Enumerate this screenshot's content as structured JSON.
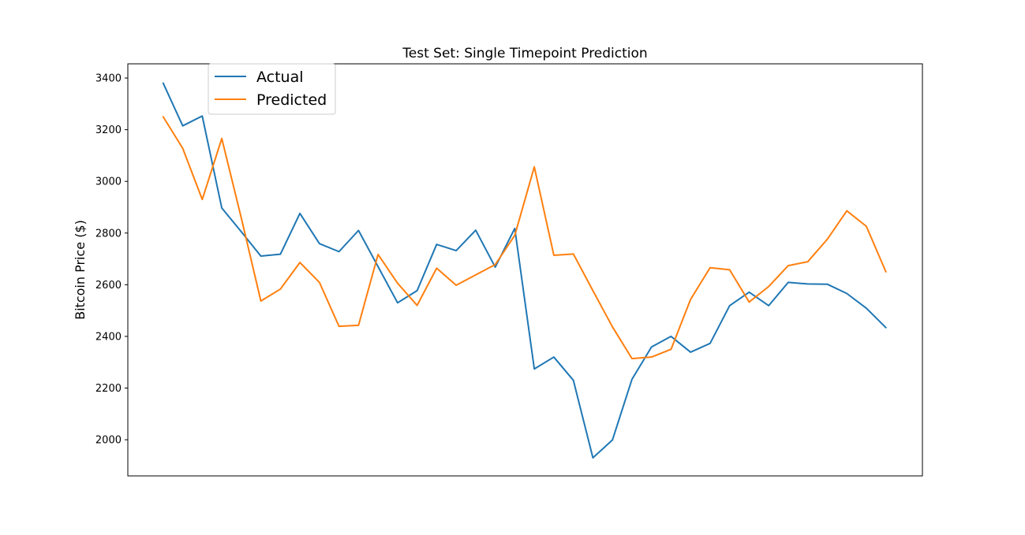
{
  "chart_data": {
    "type": "line",
    "title": "Test Set: Single Timepoint Prediction",
    "xlabel": "",
    "ylabel": "Bitcoin Price ($)",
    "x": [
      0,
      1,
      2,
      3,
      4,
      5,
      6,
      7,
      8,
      9,
      10,
      11,
      12,
      13,
      14,
      15,
      16,
      17,
      18,
      19,
      20,
      21,
      22,
      23,
      24,
      25,
      26,
      27,
      28,
      29,
      30,
      31,
      32,
      33,
      34,
      35,
      36,
      37
    ],
    "xlim": [
      -1.81,
      38.87
    ],
    "ylim": [
      1860,
      3455
    ],
    "yticks": [
      2000,
      2200,
      2400,
      2600,
      2800,
      3000,
      3200,
      3400
    ],
    "ytick_labels": [
      "2000",
      "2200",
      "2400",
      "2600",
      "2800",
      "3000",
      "3200",
      "3400"
    ],
    "x_ticks_visible": false,
    "grid": false,
    "legend_position": "upper-left",
    "series": [
      {
        "name": "Actual",
        "color": "#1f77b4",
        "values": [
          3380,
          3215,
          3253,
          2897,
          2805,
          2711,
          2718,
          2876,
          2759,
          2728,
          2810,
          2670,
          2530,
          2577,
          2756,
          2732,
          2811,
          2668,
          2818,
          2274,
          2320,
          2230,
          1930,
          1999,
          2234,
          2359,
          2400,
          2339,
          2373,
          2519,
          2571,
          2519,
          2609,
          2603,
          2602,
          2566,
          2509,
          2434
        ]
      },
      {
        "name": "Predicted",
        "color": "#ff7f0e",
        "values": [
          3250,
          3128,
          2930,
          3166,
          2858,
          2537,
          2583,
          2686,
          2609,
          2439,
          2443,
          2717,
          2606,
          2520,
          2664,
          2598,
          2638,
          2678,
          2791,
          3056,
          2714,
          2719,
          2577,
          2437,
          2314,
          2320,
          2350,
          2543,
          2666,
          2658,
          2533,
          2593,
          2674,
          2689,
          2776,
          2886,
          2826,
          2650
        ]
      }
    ]
  }
}
